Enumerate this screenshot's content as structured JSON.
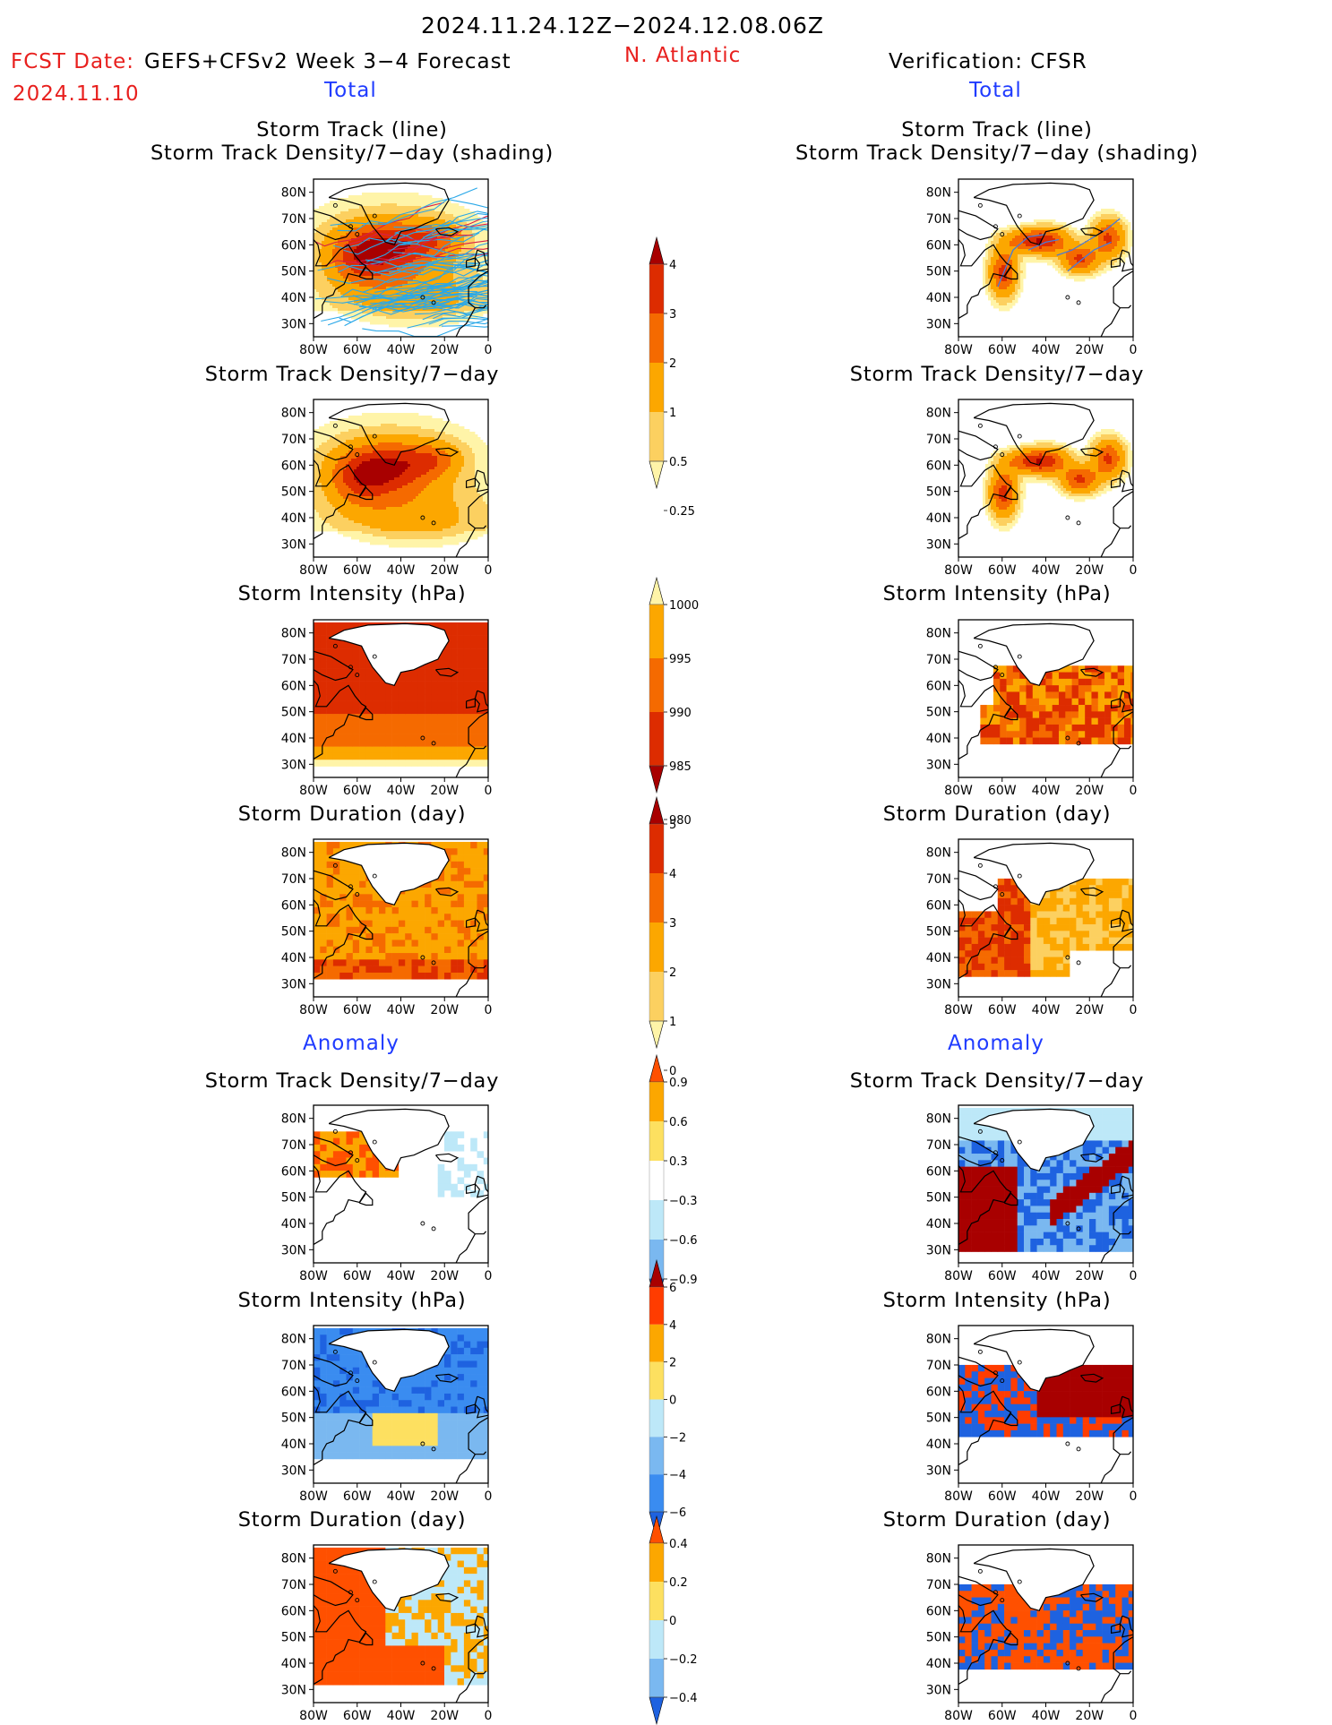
{
  "header": {
    "title": "2024.11.24.12Z−2024.12.08.06Z",
    "fcst_label": "FCST Date:",
    "fcst_date": "2024.11.10",
    "model": "GEFS+CFSv2 Week 3−4 Forecast",
    "region": "N. Atlantic",
    "verification": "Verification: CFSR",
    "left_section_total": "Total",
    "right_section_total": "Total",
    "left_section_anomaly": "Anomaly",
    "right_section_anomaly": "Anomaly"
  },
  "axes": {
    "lat_ticks": [
      "80N",
      "70N",
      "60N",
      "50N",
      "40N",
      "30N"
    ],
    "lon_ticks": [
      "80W",
      "60W",
      "40W",
      "20W",
      "0"
    ]
  },
  "panels": {
    "track_line_title_1": "Storm Track (line)",
    "track_line_title_2": "Storm Track Density/7−day (shading)",
    "density_title": "Storm Track Density/7−day",
    "intensity_title": "Storm Intensity (hPa)",
    "duration_title": "Storm Duration (day)"
  },
  "colorbars": {
    "density": {
      "labels": [
        "4",
        "3",
        "2",
        "1",
        "0.5",
        "0.25"
      ],
      "colors": [
        "#a80000",
        "#dd2c00",
        "#f56a00",
        "#fca700",
        "#fcd060",
        "#fff4a8"
      ]
    },
    "intensity": {
      "labels": [
        "1000",
        "995",
        "990",
        "985",
        "980"
      ],
      "colors": [
        "#fff4a8",
        "#fca700",
        "#f56a00",
        "#dd2c00",
        "#a80000"
      ]
    },
    "duration": {
      "labels": [
        "5",
        "4",
        "3",
        "2",
        "1",
        "0"
      ],
      "colors": [
        "#a80000",
        "#dd2c00",
        "#f56a00",
        "#fca700",
        "#fcd060",
        "#fff4a8"
      ]
    },
    "density_anom": {
      "labels": [
        "0.9",
        "0.6",
        "0.3",
        "−0.3",
        "−0.6",
        "−0.9"
      ],
      "colors": [
        "#ff5000",
        "#fca700",
        "#fde060",
        "#ffffff",
        "#bde8f8",
        "#7ab8f0",
        "#1e62e0"
      ]
    },
    "intensity_anom": {
      "labels": [
        "6",
        "4",
        "2",
        "0",
        "−2",
        "−4",
        "−6"
      ],
      "colors": [
        "#a80000",
        "#ff3c00",
        "#fca700",
        "#fde060",
        "#bde8f8",
        "#7ab8f0",
        "#3a8cf0",
        "#1e62e0"
      ]
    },
    "duration_anom": {
      "labels": [
        "0.4",
        "0.2",
        "0",
        "−0.2",
        "−0.4"
      ],
      "colors": [
        "#ff5000",
        "#fca700",
        "#fde060",
        "#bde8f8",
        "#7ab8f0",
        "#1e62e0"
      ]
    }
  },
  "palette": {
    "dark_red": "#a80000",
    "red": "#dd2c00",
    "orange": "#f56a00",
    "amber": "#fca700",
    "light_orange": "#fcd060",
    "pale_yellow": "#fff4a8",
    "light_blue": "#bde8f8",
    "mid_blue": "#7ab8f0",
    "blue": "#3a8cf0",
    "dark_blue": "#1e62e0",
    "track_line": "#2aa8e8",
    "header_red": "#e8201e",
    "header_blue": "#1f3bff"
  }
}
